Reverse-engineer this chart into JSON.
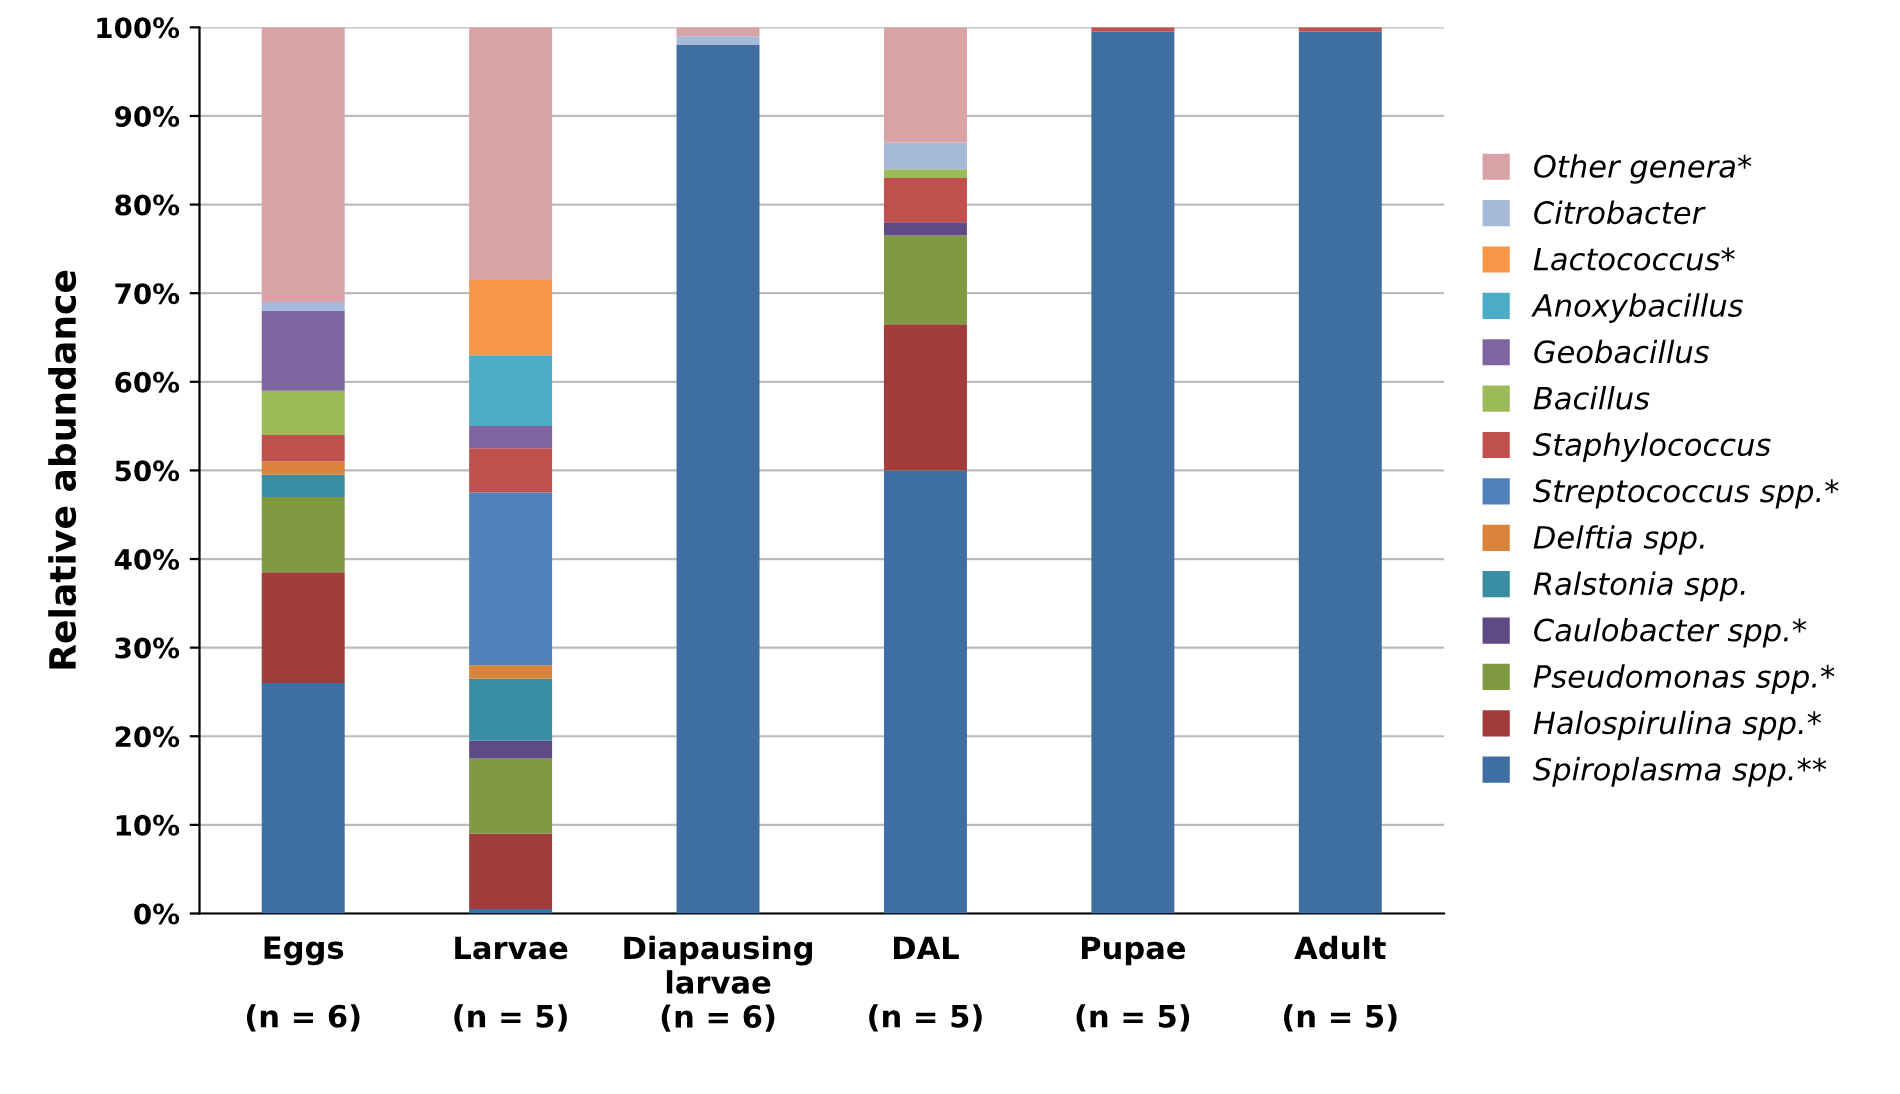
{
  "chart_data": {
    "type": "bar",
    "stacked": true,
    "ylabel": "Relative abundance",
    "categories": [
      "Eggs\n\n(n = 6)",
      "Larvae\n\n(n = 5)",
      "Diapausing\nlarvae\n(n = 6)",
      "DAL\n\n(n = 5)",
      "Pupae\n\n(n = 5)",
      "Adult\n\n(n = 5)"
    ],
    "series": [
      {
        "name": "Spiroplasma spp.**",
        "color": "#3f6ea3",
        "values": [
          26,
          0.5,
          98,
          50,
          99.5,
          99.5
        ]
      },
      {
        "name": "Halospirulina spp.*",
        "color": "#a03c3a",
        "values": [
          12.5,
          8.5,
          0,
          16.5,
          0,
          0
        ]
      },
      {
        "name": "Pseudomonas spp.*",
        "color": "#7f9a43",
        "values": [
          8.5,
          8.5,
          0,
          10,
          0,
          0
        ]
      },
      {
        "name": "Caulobacter spp.*",
        "color": "#5e4a86",
        "values": [
          0,
          2,
          0,
          1.5,
          0,
          0
        ]
      },
      {
        "name": "Ralstonia spp.",
        "color": "#3a8ea3",
        "values": [
          2.5,
          7,
          0,
          0,
          0,
          0
        ]
      },
      {
        "name": "Delftia spp.",
        "color": "#d9843a",
        "values": [
          1.5,
          1.5,
          0,
          0,
          0,
          0
        ]
      },
      {
        "name": "Streptococcus spp.*",
        "color": "#4f81bd",
        "values": [
          0,
          19.5,
          0,
          0,
          0,
          0
        ]
      },
      {
        "name": "Staphylococcus",
        "color": "#c0504d",
        "values": [
          3,
          5,
          0,
          5,
          0.5,
          0.5
        ]
      },
      {
        "name": "Bacillus",
        "color": "#9bbb59",
        "values": [
          5,
          0,
          0,
          1,
          0,
          0
        ]
      },
      {
        "name": "Geobacillus",
        "color": "#8064a2",
        "values": [
          9,
          2.5,
          0,
          0,
          0,
          0
        ]
      },
      {
        "name": "Anoxybacillus",
        "color": "#4bacc6",
        "values": [
          0,
          8,
          0,
          0,
          0,
          0
        ]
      },
      {
        "name": "Lactococcus*",
        "color": "#f79646",
        "values": [
          0,
          8.5,
          0,
          0,
          0,
          0
        ]
      },
      {
        "name": "Citrobacter",
        "color": "#a7b9d9",
        "values": [
          1,
          0,
          1,
          3,
          0,
          0
        ]
      },
      {
        "name": "Other genera*",
        "color": "#d9a3a5",
        "values": [
          31,
          28.5,
          1,
          13,
          0,
          0
        ]
      }
    ],
    "ylim": [
      0,
      100
    ],
    "yticks": [
      {
        "value": 0,
        "label": "0%"
      },
      {
        "value": 10,
        "label": "10%"
      },
      {
        "value": 20,
        "label": "20%"
      },
      {
        "value": 30,
        "label": "30%"
      },
      {
        "value": 40,
        "label": "40%"
      },
      {
        "value": 50,
        "label": "50%"
      },
      {
        "value": 60,
        "label": "60%"
      },
      {
        "value": 70,
        "label": "70%"
      },
      {
        "value": 80,
        "label": "80%"
      },
      {
        "value": 90,
        "label": "90%"
      },
      {
        "value": 100,
        "label": "100%"
      }
    ],
    "grid": "y",
    "legend": "right"
  }
}
